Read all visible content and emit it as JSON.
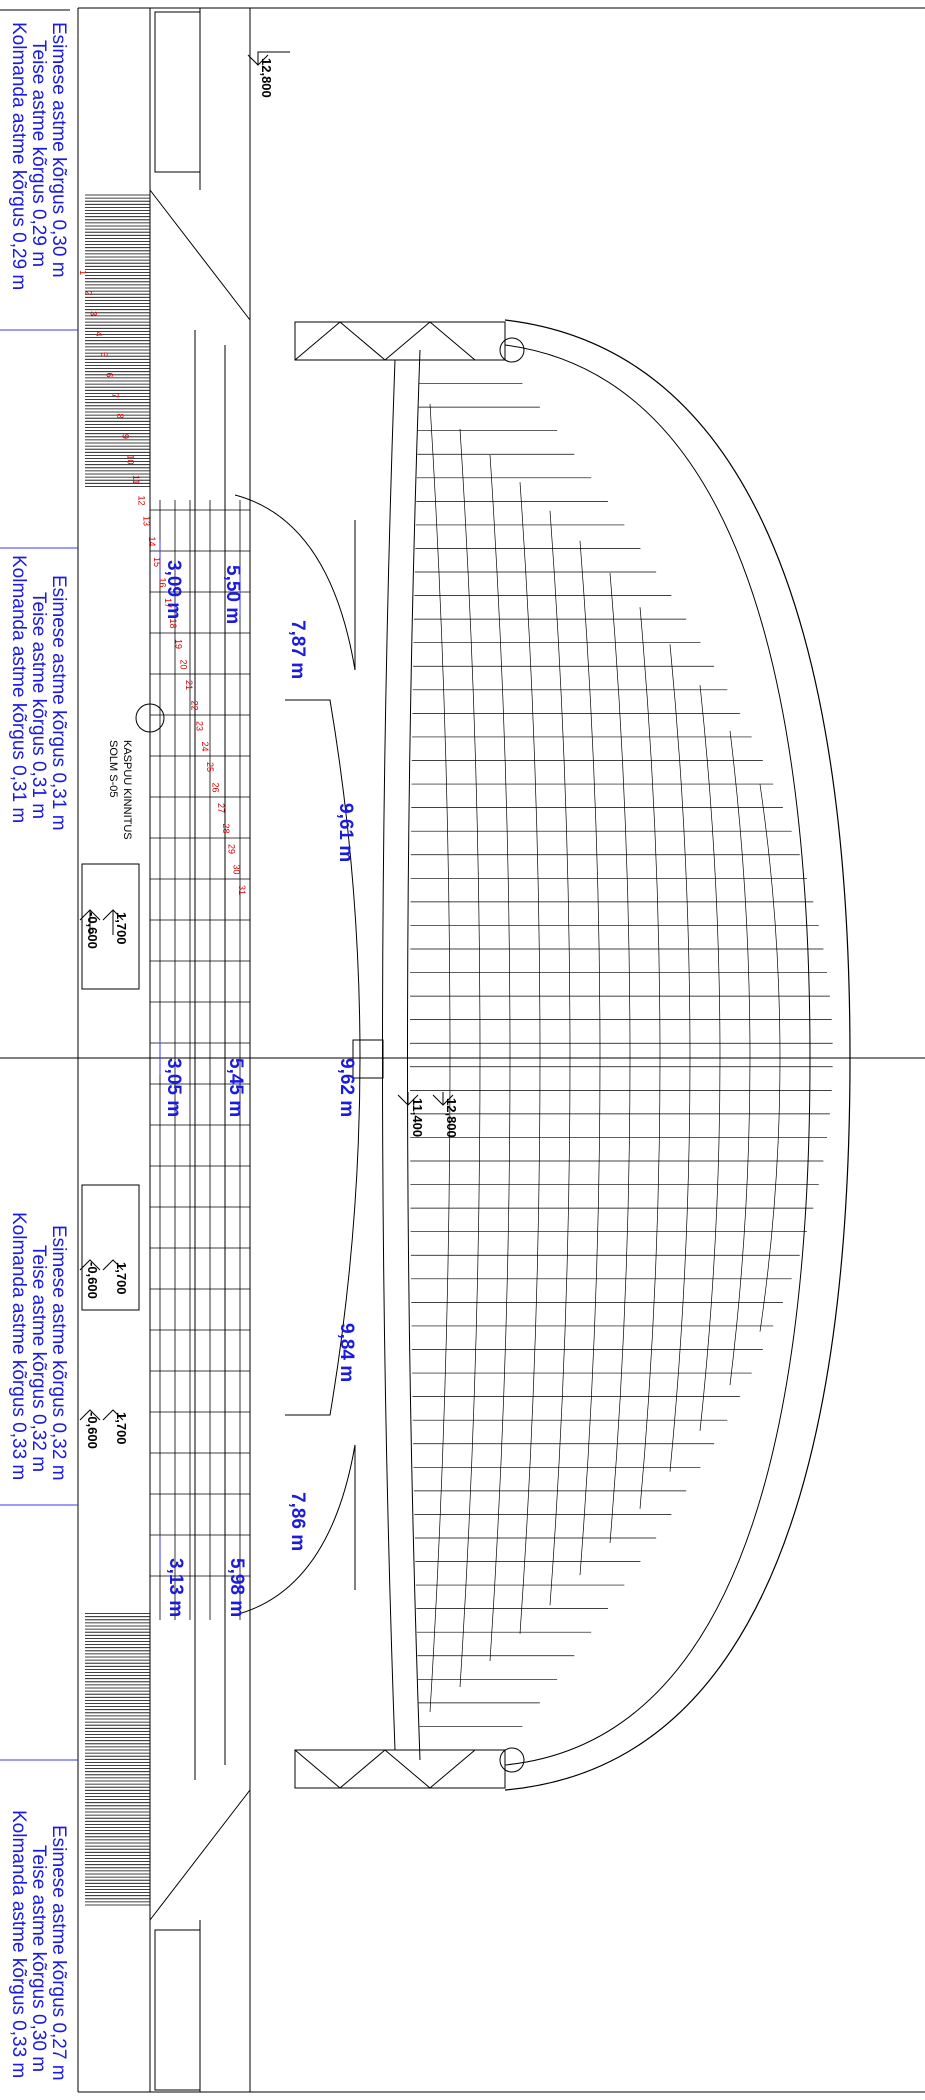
{
  "colors": {
    "annotation": "#1a1ae0",
    "row_numbers": "#e00000",
    "lines": "#000000"
  },
  "step_notes": [
    {
      "first": "Esimese astme kõrgus 0,30 m",
      "second": "Teise astme kõrgus 0,29 m",
      "third": "Kolmanda astme kõrgus 0,29 m"
    },
    {
      "first": "Esimese astme kõrgus 0,31 m",
      "second": "Teise astme kõrgus 0,31 m",
      "third": "Kolmanda astme kõrgus 0,31 m"
    },
    {
      "first": "Esimese astme kõrgus 0,32 m",
      "second": "Teise astme kõrgus 0,32 m",
      "third": "Kolmanda astme kõrgus 0,33 m"
    },
    {
      "first": "Esimese astme kõrgus 0,27 m",
      "second": "Teise astme kõrgus 0,30 m",
      "third": "Kolmanda astme kõrgus 0,33 m"
    }
  ],
  "distances": [
    "3,09 m",
    "5,50 m",
    "7,87 m",
    "9,61 m",
    "3,05 m",
    "5,45 m",
    "9,62 m",
    "9,84 m",
    "7,86 m",
    "3,13 m",
    "5,98 m"
  ],
  "elevations": [
    "12,800",
    "12,800",
    "11,400",
    "1,700",
    "-0,600",
    "1,700",
    "-0,600",
    "1,700",
    "-0,600"
  ],
  "fixing_note": {
    "line1": "KASPUU KINNITUS",
    "line2": "SOLM S-05"
  },
  "row_numbers": [
    "1",
    "2",
    "3",
    "4",
    "5",
    "6",
    "7",
    "8",
    "9",
    "10",
    "11",
    "12",
    "13",
    "14",
    "15",
    "16",
    "17",
    "18",
    "19",
    "20",
    "21",
    "22",
    "23",
    "24",
    "25",
    "26",
    "27",
    "28",
    "29",
    "30",
    "31"
  ]
}
